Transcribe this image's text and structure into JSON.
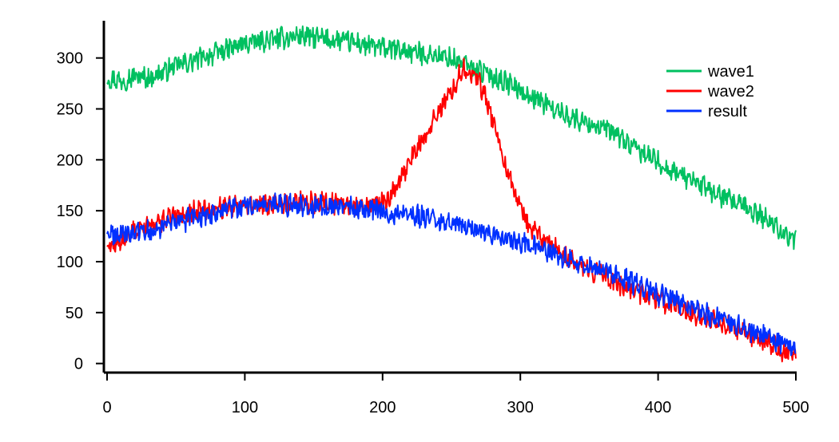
{
  "chart_data": {
    "type": "line",
    "title": "",
    "xlabel": "",
    "ylabel": "",
    "xlim": [
      0,
      500
    ],
    "ylim": [
      -5,
      335
    ],
    "xticks": [
      0,
      100,
      200,
      300,
      400,
      500
    ],
    "yticks": [
      0,
      50,
      100,
      150,
      200,
      250,
      300
    ],
    "grid": false,
    "legend_position": "top-right",
    "series": [
      {
        "name": "wave1",
        "color": "#00c060",
        "x": [
          0,
          10,
          20,
          30,
          40,
          50,
          60,
          70,
          80,
          90,
          100,
          110,
          120,
          130,
          140,
          150,
          160,
          170,
          180,
          190,
          200,
          210,
          220,
          230,
          240,
          250,
          260,
          270,
          280,
          290,
          300,
          310,
          320,
          330,
          340,
          350,
          360,
          370,
          380,
          390,
          400,
          410,
          420,
          430,
          440,
          450,
          460,
          470,
          480,
          490,
          500
        ],
        "values": [
          280,
          278,
          282,
          280,
          286,
          292,
          296,
          301,
          305,
          310,
          314,
          316,
          318,
          320,
          322,
          320,
          318,
          317,
          315,
          312,
          310,
          308,
          306,
          304,
          302,
          299,
          294,
          288,
          282,
          276,
          268,
          261,
          254,
          246,
          240,
          236,
          231,
          224,
          214,
          206,
          198,
          190,
          183,
          176,
          168,
          161,
          155,
          148,
          141,
          130,
          120
        ]
      },
      {
        "name": "wave2",
        "color": "#ff0000",
        "x": [
          0,
          10,
          20,
          30,
          40,
          50,
          60,
          70,
          80,
          90,
          100,
          110,
          120,
          130,
          140,
          150,
          160,
          170,
          180,
          190,
          200,
          210,
          215,
          220,
          230,
          240,
          250,
          255,
          260,
          265,
          270,
          275,
          280,
          285,
          290,
          300,
          310,
          320,
          330,
          340,
          350,
          360,
          370,
          380,
          390,
          400,
          410,
          420,
          430,
          440,
          450,
          460,
          470,
          480,
          490,
          500
        ],
        "values": [
          115,
          122,
          130,
          136,
          140,
          144,
          148,
          150,
          152,
          154,
          155,
          156,
          157,
          157,
          158,
          158,
          158,
          157,
          156,
          155,
          158,
          170,
          185,
          200,
          222,
          246,
          268,
          282,
          290,
          285,
          278,
          260,
          240,
          215,
          190,
          152,
          130,
          118,
          108,
          100,
          92,
          85,
          78,
          72,
          68,
          63,
          58,
          53,
          47,
          42,
          37,
          32,
          26,
          20,
          12,
          10
        ]
      },
      {
        "name": "result",
        "color": "#0030ff",
        "x": [
          0,
          10,
          20,
          30,
          40,
          50,
          60,
          70,
          80,
          90,
          100,
          110,
          120,
          130,
          140,
          150,
          160,
          170,
          180,
          190,
          200,
          210,
          220,
          230,
          240,
          250,
          260,
          270,
          280,
          290,
          300,
          310,
          320,
          330,
          340,
          350,
          360,
          370,
          380,
          390,
          400,
          410,
          420,
          430,
          440,
          450,
          460,
          470,
          480,
          490,
          500
        ],
        "values": [
          126,
          126,
          128,
          130,
          134,
          138,
          142,
          145,
          149,
          152,
          154,
          155,
          156,
          156,
          156,
          155,
          154,
          153,
          152,
          151,
          150,
          148,
          146,
          144,
          142,
          138,
          134,
          130,
          126,
          122,
          118,
          114,
          111,
          105,
          100,
          95,
          91,
          86,
          80,
          75,
          68,
          63,
          57,
          52,
          46,
          41,
          36,
          31,
          25,
          20,
          14
        ]
      }
    ]
  }
}
